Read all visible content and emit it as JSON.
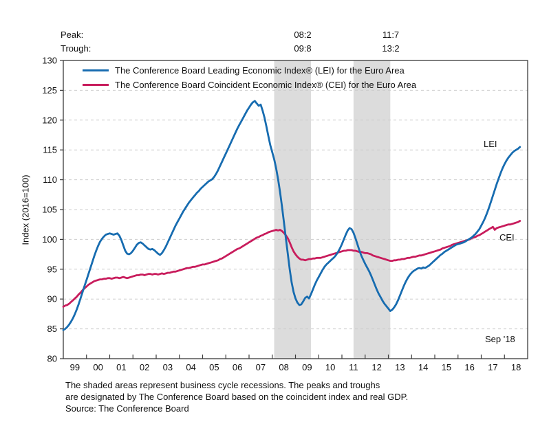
{
  "header": {
    "peak_label": "Peak:",
    "trough_label": "Trough:",
    "recessions": [
      {
        "peak": "08:2",
        "trough": "09:8"
      },
      {
        "peak": "11:7",
        "trough": "13:2"
      }
    ]
  },
  "chart_data": {
    "type": "line",
    "ylabel": "Index (2016=100)",
    "ylim": [
      80,
      130
    ],
    "ytick_values": [
      80,
      85,
      90,
      95,
      100,
      105,
      110,
      115,
      120,
      125,
      130
    ],
    "ytick_labels": [
      "80",
      "85",
      "90",
      "95",
      "100",
      "105",
      "110",
      "115",
      "120",
      "125",
      "130"
    ],
    "x_domain": [
      1999,
      2019
    ],
    "xtick_labels": [
      "99",
      "00",
      "01",
      "02",
      "03",
      "04",
      "05",
      "06",
      "07",
      "08",
      "09",
      "10",
      "11",
      "12",
      "13",
      "14",
      "15",
      "16",
      "17",
      "18"
    ],
    "grid": "horizontal-dashed",
    "legend_position": "top-left-inside",
    "recession_bands": [
      {
        "start": 2008.083,
        "end": 2009.667
      },
      {
        "start": 2011.5,
        "end": 2013.083
      }
    ],
    "colors": {
      "lei": "#176cb0",
      "cei": "#c81c5c",
      "band": "#dcdcdc",
      "grid": "#cccccc",
      "axis": "#3a3a3a",
      "text": "#111111"
    },
    "annotations": {
      "lei": "LEI",
      "cei": "CEI",
      "last_point": "Sep '18"
    },
    "series": [
      {
        "name": "LEI",
        "label": "The Conference Board Leading Economic Index® (LEI) for the Euro Area",
        "color": "#176cb0",
        "start": "1999-01",
        "end": "2018-09",
        "values": [
          84.8,
          85.0,
          85.3,
          85.7,
          86.2,
          86.8,
          87.5,
          88.3,
          89.2,
          90.2,
          91.2,
          92.2,
          93.2,
          94.2,
          95.2,
          96.2,
          97.2,
          98.1,
          98.9,
          99.6,
          100.1,
          100.5,
          100.8,
          100.9,
          101.0,
          100.9,
          100.8,
          100.9,
          101.0,
          100.6,
          99.9,
          99.0,
          98.1,
          97.6,
          97.5,
          97.7,
          98.1,
          98.6,
          99.1,
          99.4,
          99.5,
          99.3,
          99.0,
          98.7,
          98.4,
          98.3,
          98.4,
          98.2,
          97.9,
          97.6,
          97.4,
          97.7,
          98.2,
          98.8,
          99.5,
          100.2,
          100.9,
          101.6,
          102.3,
          102.9,
          103.5,
          104.1,
          104.7,
          105.2,
          105.7,
          106.2,
          106.6,
          107.0,
          107.4,
          107.8,
          108.1,
          108.5,
          108.8,
          109.1,
          109.4,
          109.7,
          109.9,
          110.1,
          110.5,
          111.0,
          111.6,
          112.3,
          113.0,
          113.7,
          114.4,
          115.1,
          115.8,
          116.5,
          117.2,
          117.9,
          118.6,
          119.2,
          119.8,
          120.4,
          121.0,
          121.6,
          122.1,
          122.6,
          123.0,
          123.2,
          122.8,
          122.4,
          122.6,
          121.6,
          120.4,
          118.9,
          117.3,
          115.8,
          114.6,
          113.4,
          111.9,
          110.1,
          108.0,
          105.6,
          103.0,
          100.3,
          97.6,
          95.0,
          92.8,
          91.2,
          90.1,
          89.4,
          89.0,
          89.1,
          89.6,
          90.2,
          90.4,
          90.1,
          90.8,
          91.6,
          92.4,
          93.1,
          93.7,
          94.3,
          94.9,
          95.4,
          95.8,
          96.1,
          96.4,
          96.7,
          97.0,
          97.4,
          97.9,
          98.5,
          99.2,
          100.0,
          100.8,
          101.5,
          101.9,
          101.7,
          101.1,
          100.2,
          99.2,
          98.2,
          97.3,
          96.6,
          95.9,
          95.3,
          94.7,
          94.0,
          93.2,
          92.4,
          91.6,
          90.9,
          90.3,
          89.7,
          89.2,
          88.8,
          88.4,
          88.0,
          88.2,
          88.6,
          89.1,
          89.8,
          90.6,
          91.4,
          92.2,
          92.9,
          93.5,
          94.0,
          94.4,
          94.7,
          94.9,
          95.1,
          95.2,
          95.1,
          95.3,
          95.2,
          95.4,
          95.6,
          95.9,
          96.2,
          96.5,
          96.8,
          97.1,
          97.4,
          97.6,
          97.9,
          98.1,
          98.3,
          98.5,
          98.7,
          98.9,
          99.1,
          99.2,
          99.3,
          99.4,
          99.5,
          99.7,
          99.9,
          100.1,
          100.3,
          100.6,
          100.9,
          101.3,
          101.7,
          102.3,
          102.9,
          103.6,
          104.4,
          105.3,
          106.3,
          107.3,
          108.3,
          109.3,
          110.2,
          111.1,
          111.9,
          112.6,
          113.2,
          113.7,
          114.1,
          114.5,
          114.8,
          115.0,
          115.2,
          115.5
        ]
      },
      {
        "name": "CEI",
        "label": "The Conference Board Coincident Economic Index® (CEI) for the Euro Area",
        "color": "#c81c5c",
        "start": "1999-01",
        "end": "2018-09",
        "values": [
          88.7,
          88.9,
          89.0,
          89.2,
          89.5,
          89.8,
          90.1,
          90.4,
          90.8,
          91.1,
          91.5,
          91.8,
          92.1,
          92.4,
          92.6,
          92.8,
          93.0,
          93.1,
          93.2,
          93.3,
          93.3,
          93.4,
          93.4,
          93.5,
          93.5,
          93.4,
          93.5,
          93.6,
          93.6,
          93.5,
          93.6,
          93.7,
          93.6,
          93.5,
          93.6,
          93.7,
          93.8,
          93.9,
          94.0,
          94.0,
          94.1,
          94.1,
          94.0,
          94.1,
          94.2,
          94.2,
          94.1,
          94.2,
          94.2,
          94.1,
          94.2,
          94.3,
          94.2,
          94.3,
          94.4,
          94.4,
          94.5,
          94.6,
          94.6,
          94.7,
          94.8,
          94.9,
          95.0,
          95.1,
          95.2,
          95.2,
          95.3,
          95.4,
          95.4,
          95.5,
          95.6,
          95.7,
          95.8,
          95.8,
          95.9,
          96.0,
          96.1,
          96.2,
          96.3,
          96.4,
          96.5,
          96.7,
          96.8,
          97.0,
          97.2,
          97.4,
          97.6,
          97.8,
          98.0,
          98.2,
          98.4,
          98.5,
          98.7,
          98.9,
          99.1,
          99.3,
          99.5,
          99.7,
          99.9,
          100.1,
          100.3,
          100.4,
          100.6,
          100.7,
          100.9,
          101.0,
          101.2,
          101.3,
          101.4,
          101.5,
          101.6,
          101.5,
          101.6,
          101.4,
          101.1,
          100.7,
          100.2,
          99.5,
          98.7,
          98.0,
          97.5,
          97.1,
          96.8,
          96.6,
          96.6,
          96.5,
          96.6,
          96.7,
          96.7,
          96.8,
          96.8,
          96.9,
          96.9,
          96.9,
          97.0,
          97.1,
          97.2,
          97.3,
          97.4,
          97.5,
          97.6,
          97.7,
          97.8,
          97.9,
          98.0,
          98.1,
          98.1,
          98.2,
          98.2,
          98.2,
          98.1,
          98.1,
          98.0,
          97.9,
          97.9,
          97.8,
          97.7,
          97.7,
          97.6,
          97.5,
          97.3,
          97.2,
          97.1,
          97.0,
          96.9,
          96.8,
          96.7,
          96.6,
          96.5,
          96.4,
          96.4,
          96.5,
          96.5,
          96.6,
          96.6,
          96.7,
          96.7,
          96.8,
          96.9,
          96.9,
          97.0,
          97.1,
          97.1,
          97.2,
          97.3,
          97.3,
          97.4,
          97.5,
          97.6,
          97.7,
          97.8,
          97.9,
          98.0,
          98.1,
          98.2,
          98.3,
          98.5,
          98.6,
          98.7,
          98.8,
          98.9,
          99.1,
          99.2,
          99.3,
          99.4,
          99.5,
          99.6,
          99.7,
          99.8,
          99.9,
          100.0,
          100.2,
          100.3,
          100.4,
          100.6,
          100.7,
          100.9,
          101.1,
          101.3,
          101.5,
          101.7,
          101.9,
          102.1,
          101.6,
          101.9,
          102.0,
          102.1,
          102.2,
          102.3,
          102.4,
          102.5,
          102.5,
          102.6,
          102.7,
          102.8,
          102.9,
          103.1
        ]
      }
    ]
  },
  "footnote": {
    "lines": [
      "The shaded areas represent business cycle recessions. The peaks and troughs",
      "are designated by The Conference Board based on the coincident index and real GDP.",
      "Source: The Conference Board"
    ]
  }
}
